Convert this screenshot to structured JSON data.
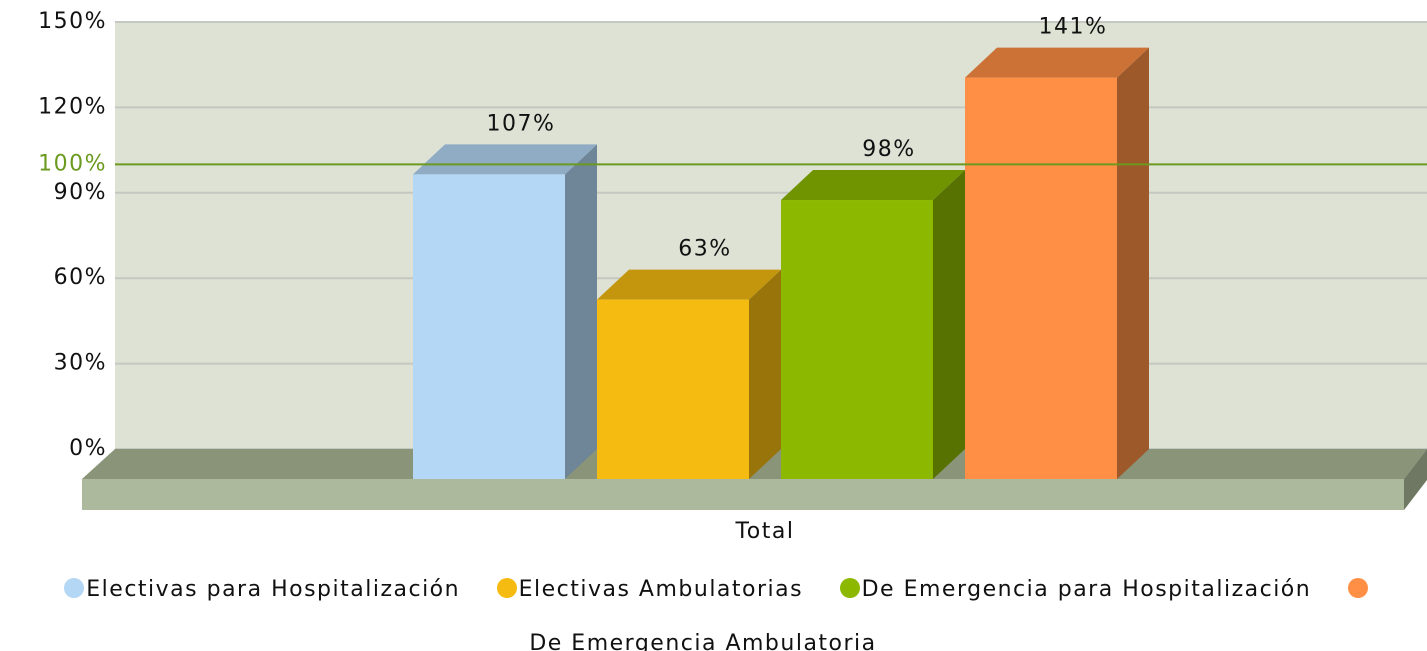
{
  "chart_data": {
    "type": "bar",
    "categories": [
      "Total"
    ],
    "series": [
      {
        "name": "Electivas para Hospitalización",
        "color": "#b3d7f5",
        "values": [
          107
        ],
        "value_labels": [
          "107%"
        ]
      },
      {
        "name": "Electivas Ambulatorias",
        "color": "#f5bb10",
        "values": [
          63
        ],
        "value_labels": [
          "63%"
        ]
      },
      {
        "name": "De Emergencia para Hospitalización",
        "color": "#8cb800",
        "values": [
          98
        ],
        "value_labels": [
          "98%"
        ]
      },
      {
        "name": "De Emergencia Ambulatoria",
        "color": "#ff8f45",
        "values": [
          141
        ],
        "value_labels": [
          "141%"
        ]
      }
    ],
    "ylim": [
      0,
      150
    ],
    "yticks": [
      {
        "value": 0,
        "label": "0%"
      },
      {
        "value": 30,
        "label": "30%"
      },
      {
        "value": 60,
        "label": "60%"
      },
      {
        "value": 90,
        "label": "90%"
      },
      {
        "value": 120,
        "label": "120%"
      },
      {
        "value": 150,
        "label": "150%"
      }
    ],
    "trendline": {
      "value": 100,
      "label": "100%",
      "color": "#6b9a1f"
    },
    "grid": true,
    "legend": "bottom"
  }
}
